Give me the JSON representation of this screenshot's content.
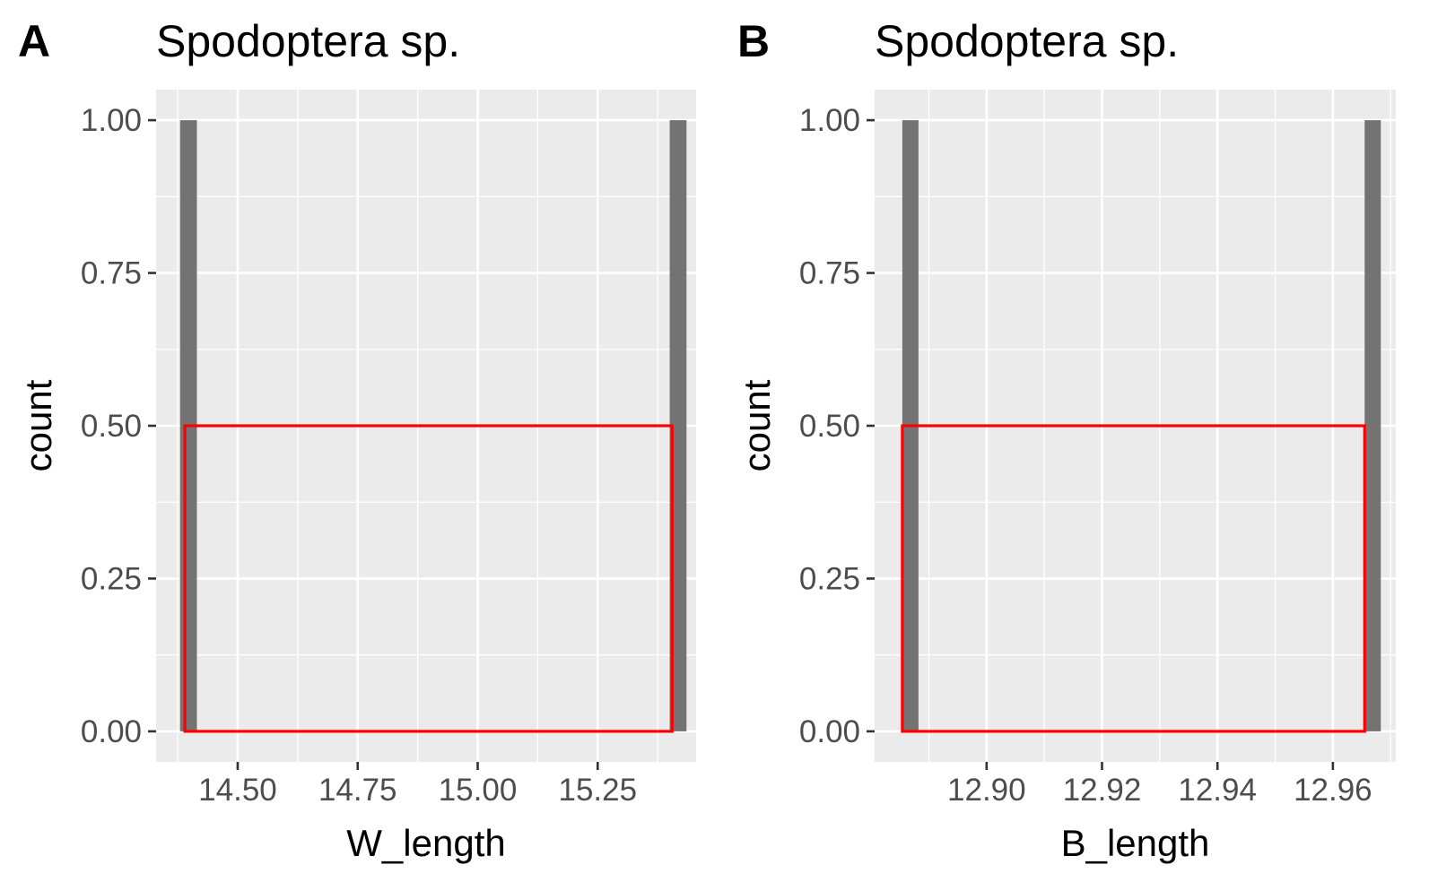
{
  "chart_data": [
    {
      "type": "bar",
      "panel_label": "A",
      "title": "Spodoptera sp.",
      "xlabel": "W_length",
      "ylabel": "count",
      "xlim": [
        14.33,
        15.455
      ],
      "ylim": [
        -0.05,
        1.05
      ],
      "x_ticks": [
        14.5,
        14.75,
        15.0,
        15.25
      ],
      "x_tick_labels": [
        "14.50",
        "14.75",
        "15.00",
        "15.25"
      ],
      "y_ticks": [
        0,
        0.25,
        0.5,
        0.75,
        1.0
      ],
      "y_tick_labels": [
        "0.00",
        "0.25",
        "0.50",
        "0.75",
        "1.00"
      ],
      "grid": true,
      "bars": [
        {
          "x0": 14.38,
          "x1": 14.415,
          "value": 1
        },
        {
          "x0": 15.4,
          "x1": 15.435,
          "value": 1
        }
      ],
      "overlay_box": {
        "x0": 14.39,
        "x1": 15.405,
        "y0": 0,
        "y1": 0.5,
        "color": "#ff0000"
      },
      "bar_color": "#737373"
    },
    {
      "type": "bar",
      "panel_label": "B",
      "title": "Spodoptera sp.",
      "xlabel": "B_length",
      "ylabel": "count",
      "xlim": [
        12.8806,
        12.9709
      ],
      "ylim": [
        -0.05,
        1.05
      ],
      "x_ticks": [
        12.9,
        12.92,
        12.94,
        12.96
      ],
      "x_tick_labels": [
        "12.90",
        "12.92",
        "12.94",
        "12.96"
      ],
      "y_ticks": [
        0,
        0.25,
        0.5,
        0.75,
        1.0
      ],
      "y_tick_labels": [
        "0.00",
        "0.25",
        "0.50",
        "0.75",
        "1.00"
      ],
      "grid": true,
      "bars": [
        {
          "x0": 12.8854,
          "x1": 12.8882,
          "value": 1
        },
        {
          "x0": 12.9655,
          "x1": 12.9683,
          "value": 1
        }
      ],
      "overlay_box": {
        "x0": 12.8854,
        "x1": 12.9655,
        "y0": 0,
        "y1": 0.5,
        "color": "#ff0000"
      },
      "bar_color": "#737373"
    }
  ]
}
